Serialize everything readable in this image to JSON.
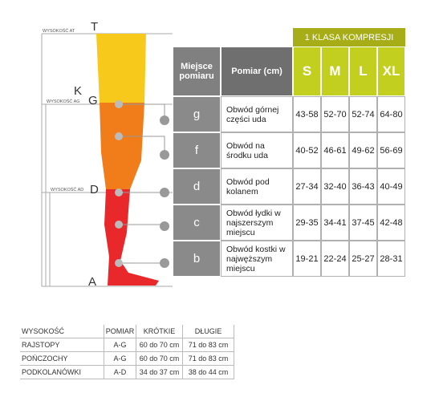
{
  "leg": {
    "letters": [
      "T",
      "K",
      "G",
      "D",
      "A"
    ],
    "heights": [
      "WYSOKOŚĆ AT",
      "WYSOKOŚĆ AG",
      "WYSOKOŚĆ AD"
    ]
  },
  "table": {
    "compression": "1 KLASA KOMPRESJI",
    "headers": [
      "Miejsce pomiaru",
      "Pomiar (cm)",
      "S",
      "M",
      "L",
      "XL"
    ],
    "rows": [
      [
        "g",
        "Obwód górnej części uda",
        "43-58",
        "52-70",
        "52-74",
        "64-80"
      ],
      [
        "f",
        "Obwód na środku uda",
        "40-52",
        "46-61",
        "49-62",
        "56-69"
      ],
      [
        "d",
        "Obwód pod kolanem",
        "27-34",
        "32-40",
        "36-43",
        "40-49"
      ],
      [
        "c",
        "Obwód łydki w najszerszym miejscu",
        "29-35",
        "34-41",
        "37-45",
        "42-48"
      ],
      [
        "b",
        "Obwód kostki w najwęższym miejscu",
        "19-21",
        "22-24",
        "25-27",
        "28-31"
      ]
    ]
  },
  "bottom_table": {
    "headers": [
      "WYSOKOŚĆ",
      "POMIAR",
      "KRÓTKIE",
      "DŁUGIE"
    ],
    "rows": [
      [
        "RAJSTOPY",
        "A-G",
        "60 do 70 cm",
        "71 do 83 cm"
      ],
      [
        "POŃCZOCHY",
        "A-G",
        "60 do 70 cm",
        "71 do 83 cm"
      ],
      [
        "PODKOLANÓWKI",
        "A-D",
        "34 do 37 cm",
        "38 do 44 cm"
      ]
    ]
  }
}
